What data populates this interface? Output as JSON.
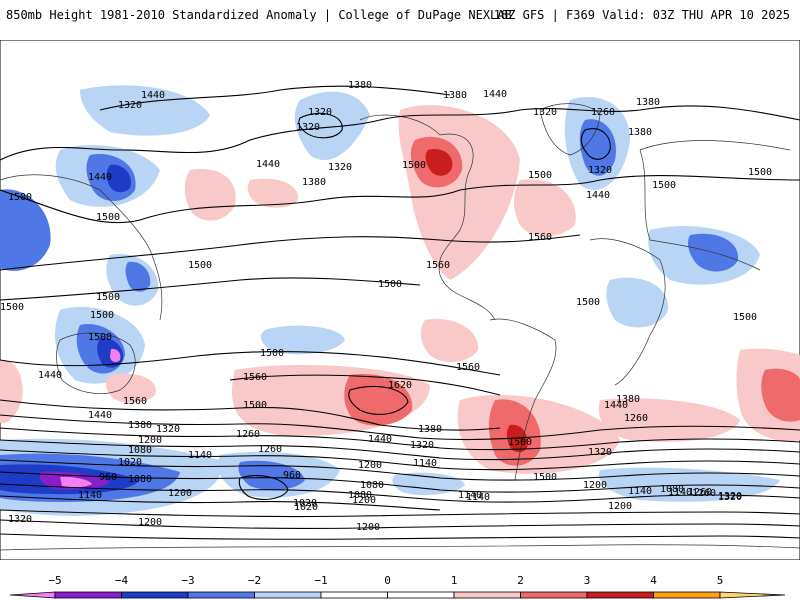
{
  "header": {
    "title_left": "850mb Height 1981-2010 Standardized Anomaly | College of DuPage NEXLAB",
    "title_right": "18Z GFS | F369 Valid: 03Z THU APR 10 2025"
  },
  "colors": {
    "neg5": "#f280f2",
    "neg4": "#8a1ec8",
    "neg3": "#1e3cc8",
    "neg2": "#4f78e6",
    "neg1": "#b9d5f5",
    "zero": "#ffffff",
    "pos1": "#f9c8c8",
    "pos2": "#ef6b6b",
    "pos3": "#c81e1e",
    "pos4": "#ffa014",
    "pos5": "#ffd278"
  },
  "colorbar": {
    "ticks": [
      {
        "label": "−5",
        "value": -5
      },
      {
        "label": "−4",
        "value": -4
      },
      {
        "label": "−3",
        "value": -3
      },
      {
        "label": "−2",
        "value": -2
      },
      {
        "label": "−1",
        "value": -1
      },
      {
        "label": "0",
        "value": 0
      },
      {
        "label": "1",
        "value": 1
      },
      {
        "label": "2",
        "value": 2
      },
      {
        "label": "3",
        "value": 3
      },
      {
        "label": "4",
        "value": 4
      },
      {
        "label": "5",
        "value": 5
      }
    ]
  },
  "contour_labels": [
    "1440",
    "1380",
    "1320",
    "1380",
    "1440",
    "1320",
    "1380",
    "1320",
    "1380",
    "1260",
    "1320",
    "1440",
    "1440",
    "1320",
    "1380",
    "1500",
    "1500",
    "1500",
    "1500",
    "1320",
    "1440",
    "1500",
    "1500",
    "1560",
    "1500",
    "1560",
    "1500",
    "1500",
    "1500",
    "1500",
    "1440",
    "1500",
    "1500",
    "1500",
    "1500",
    "1560",
    "1620",
    "1560",
    "1560",
    "1500",
    "1500",
    "1440",
    "1380",
    "1260",
    "1440",
    "1500",
    "1320",
    "1440",
    "1380",
    "1380",
    "1320",
    "1260",
    "1200",
    "1200",
    "1140",
    "1080",
    "1320",
    "1020",
    "1140",
    "1260",
    "1020",
    "960",
    "1080",
    "960",
    "1200",
    "1140",
    "1200",
    "1140",
    "1080",
    "1080",
    "1140",
    "1200",
    "1200",
    "1320",
    "1320",
    "1200",
    "1200",
    "1260",
    "1140",
    "1020",
    "1140",
    "1080",
    "1260",
    "1320"
  ]
}
